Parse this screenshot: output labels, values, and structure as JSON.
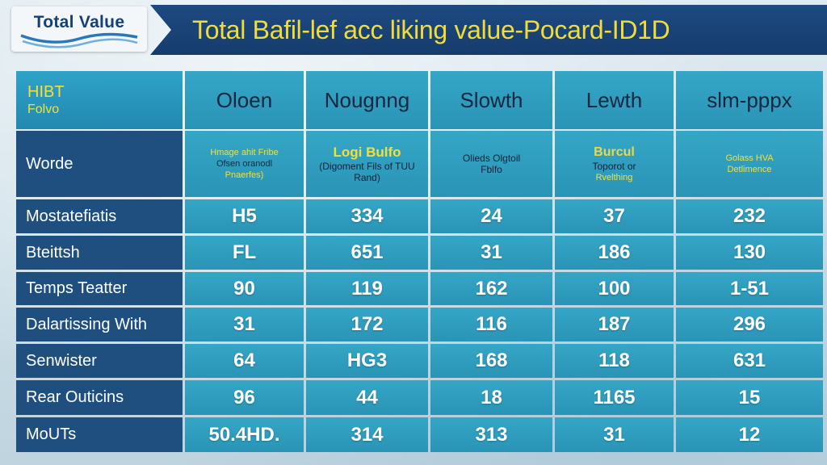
{
  "logo": {
    "text": "Total Value"
  },
  "title": "Total Bafil-lef acc liking value-Pocard-ID1D",
  "corner": {
    "line1": "HIBT",
    "line2": "Folvo"
  },
  "columns": [
    "Oloen",
    "Nougnng",
    "Slowth",
    "Lewth",
    "slm-pppx"
  ],
  "description_row": {
    "label": "Worde",
    "cells": [
      {
        "lines": [
          {
            "text": "Hmage ahit Fribe",
            "style": "y"
          },
          {
            "text": "Ofsen oranodl",
            "style": "d"
          },
          {
            "text": "Pnaerfes)",
            "style": "y"
          }
        ]
      },
      {
        "lines": [
          {
            "text": "Logi Bulfo",
            "style": "ybig"
          },
          {
            "text": "(Digoment Fils of TUU",
            "style": "ddark"
          },
          {
            "text": "Rand)",
            "style": "ddark"
          }
        ]
      },
      {
        "lines": [
          {
            "text": "Olieds Olgtoil",
            "style": "ddark"
          },
          {
            "text": "Fblfo",
            "style": "ddark"
          }
        ]
      },
      {
        "lines": [
          {
            "text": "Burcul",
            "style": "ymed"
          },
          {
            "text": "Toporot or",
            "style": "ddark"
          },
          {
            "text": "Rvelthing",
            "style": "y"
          }
        ]
      },
      {
        "lines": [
          {
            "text": "Golass HVA",
            "style": "y"
          },
          {
            "text": "Detlimence",
            "style": "y"
          }
        ]
      }
    ]
  },
  "rows": [
    {
      "label": "Mostatefiatis",
      "values": [
        "H5",
        "334",
        "24",
        "37",
        "232"
      ]
    },
    {
      "label": "Bteittsh",
      "values": [
        "FL",
        "651",
        "31",
        "186",
        "130"
      ]
    },
    {
      "label": "Temps Teatter",
      "values": [
        "90",
        "119",
        "162",
        "100",
        "1-51"
      ]
    },
    {
      "label": "Dalartissing With",
      "values": [
        "31",
        "172",
        "116",
        "187",
        "296"
      ]
    },
    {
      "label": "Senwister",
      "values": [
        "64",
        "HG3",
        "168",
        "118",
        "631"
      ]
    },
    {
      "label": "Rear Outicins",
      "values": [
        "96",
        "44",
        "18",
        "1165",
        "15"
      ]
    },
    {
      "label": "MoUTs",
      "values": [
        "50.4HD.",
        "314",
        "313",
        "31",
        "12"
      ]
    }
  ],
  "colors": {
    "accent": "#f2e03a",
    "cell_blue": "#35a6c6",
    "row_navy": "#1f4f7f",
    "banner": "#1d4a82"
  }
}
